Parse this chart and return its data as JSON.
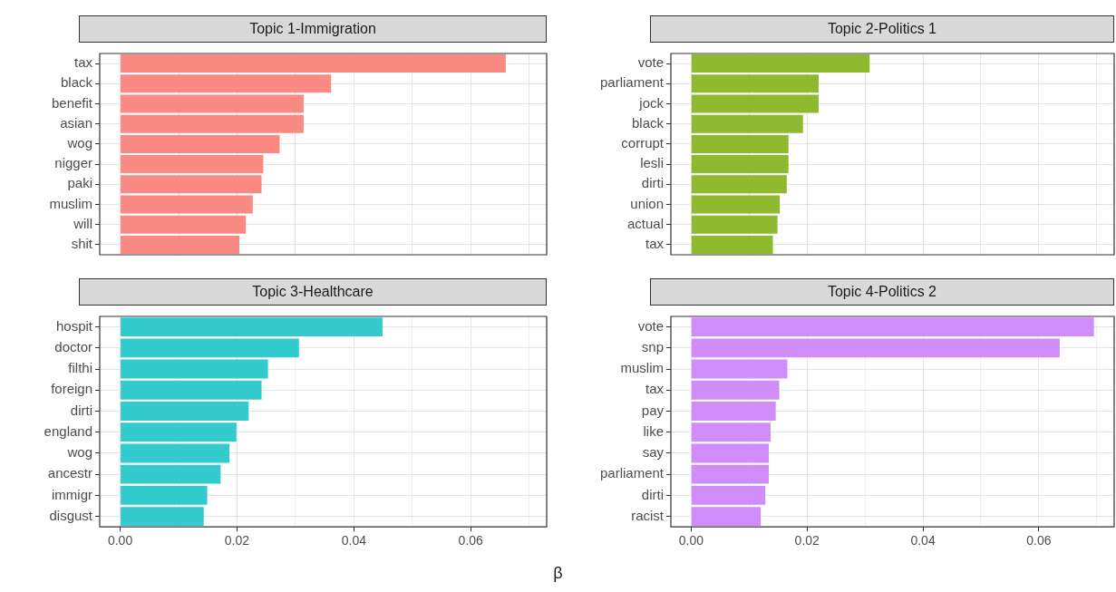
{
  "chart_data": [
    {
      "type": "bar",
      "orientation": "horizontal",
      "title": "Topic 1-Immigration",
      "categories": [
        "tax",
        "black",
        "benefit",
        "asian",
        "wog",
        "nigger",
        "paki",
        "muslim",
        "will",
        "shit"
      ],
      "series": [
        {
          "color": "#f98b84",
          "values": [
            0.066,
            0.0361,
            0.0314,
            0.0314,
            0.0273,
            0.0245,
            0.0242,
            0.0227,
            0.0215,
            0.0204
          ]
        }
      ],
      "xlim": [
        -0.0035,
        0.073
      ],
      "xticks": [
        0,
        0.01,
        0.02,
        0.03,
        0.04,
        0.05,
        0.06,
        0.07
      ],
      "tick_labels": "y",
      "grid": true,
      "legend": false
    },
    {
      "type": "bar",
      "orientation": "horizontal",
      "title": "Topic 2-Politics 1",
      "categories": [
        "vote",
        "parliament",
        "jock",
        "black",
        "corrupt",
        "lesli",
        "dirti",
        "union",
        "actual",
        "tax"
      ],
      "series": [
        {
          "color": "#8fb92e",
          "values": [
            0.0308,
            0.022,
            0.022,
            0.0193,
            0.0168,
            0.0168,
            0.0165,
            0.0153,
            0.0149,
            0.0141
          ]
        }
      ],
      "xlim": [
        -0.0035,
        0.073
      ],
      "xticks": [
        0,
        0.01,
        0.02,
        0.03,
        0.04,
        0.05,
        0.06,
        0.07
      ],
      "tick_labels": "y",
      "grid": true,
      "legend": false
    },
    {
      "type": "bar",
      "orientation": "horizontal",
      "title": "Topic 3-Healthcare",
      "xlabel": "β",
      "categories": [
        "hospit",
        "doctor",
        "filthi",
        "foreign",
        "dirti",
        "england",
        "wog",
        "ancestr",
        "immigr",
        "disgust"
      ],
      "series": [
        {
          "color": "#33cbce",
          "values": [
            0.0449,
            0.0306,
            0.0253,
            0.0242,
            0.022,
            0.0199,
            0.0187,
            0.0172,
            0.0149,
            0.0143
          ]
        }
      ],
      "xlim": [
        -0.0035,
        0.073
      ],
      "xticks": [
        {
          "value": 0,
          "label": "0.00"
        },
        {
          "value": 0.01,
          "label": null
        },
        {
          "value": 0.02,
          "label": "0.02"
        },
        {
          "value": 0.03,
          "label": null
        },
        {
          "value": 0.04,
          "label": "0.04"
        },
        {
          "value": 0.05,
          "label": null
        },
        {
          "value": 0.06,
          "label": "0.06"
        },
        {
          "value": 0.07,
          "label": null
        }
      ],
      "grid": true,
      "legend": false
    },
    {
      "type": "bar",
      "orientation": "horizontal",
      "title": "Topic 4-Politics 2",
      "categories": [
        "vote",
        "snp",
        "muslim",
        "tax",
        "pay",
        "like",
        "say",
        "parliament",
        "dirti",
        "racist"
      ],
      "series": [
        {
          "color": "#d08df9",
          "values": [
            0.0695,
            0.0636,
            0.0166,
            0.0152,
            0.0146,
            0.0137,
            0.0134,
            0.0134,
            0.0128,
            0.012
          ]
        }
      ],
      "xlim": [
        -0.0035,
        0.073
      ],
      "xticks": [
        {
          "value": 0,
          "label": "0.00"
        },
        {
          "value": 0.01,
          "label": null
        },
        {
          "value": 0.02,
          "label": "0.02"
        },
        {
          "value": 0.03,
          "label": null
        },
        {
          "value": 0.04,
          "label": "0.04"
        },
        {
          "value": 0.05,
          "label": null
        },
        {
          "value": 0.06,
          "label": "0.06"
        },
        {
          "value": 0.07,
          "label": null
        }
      ],
      "grid": true,
      "legend": false
    }
  ]
}
